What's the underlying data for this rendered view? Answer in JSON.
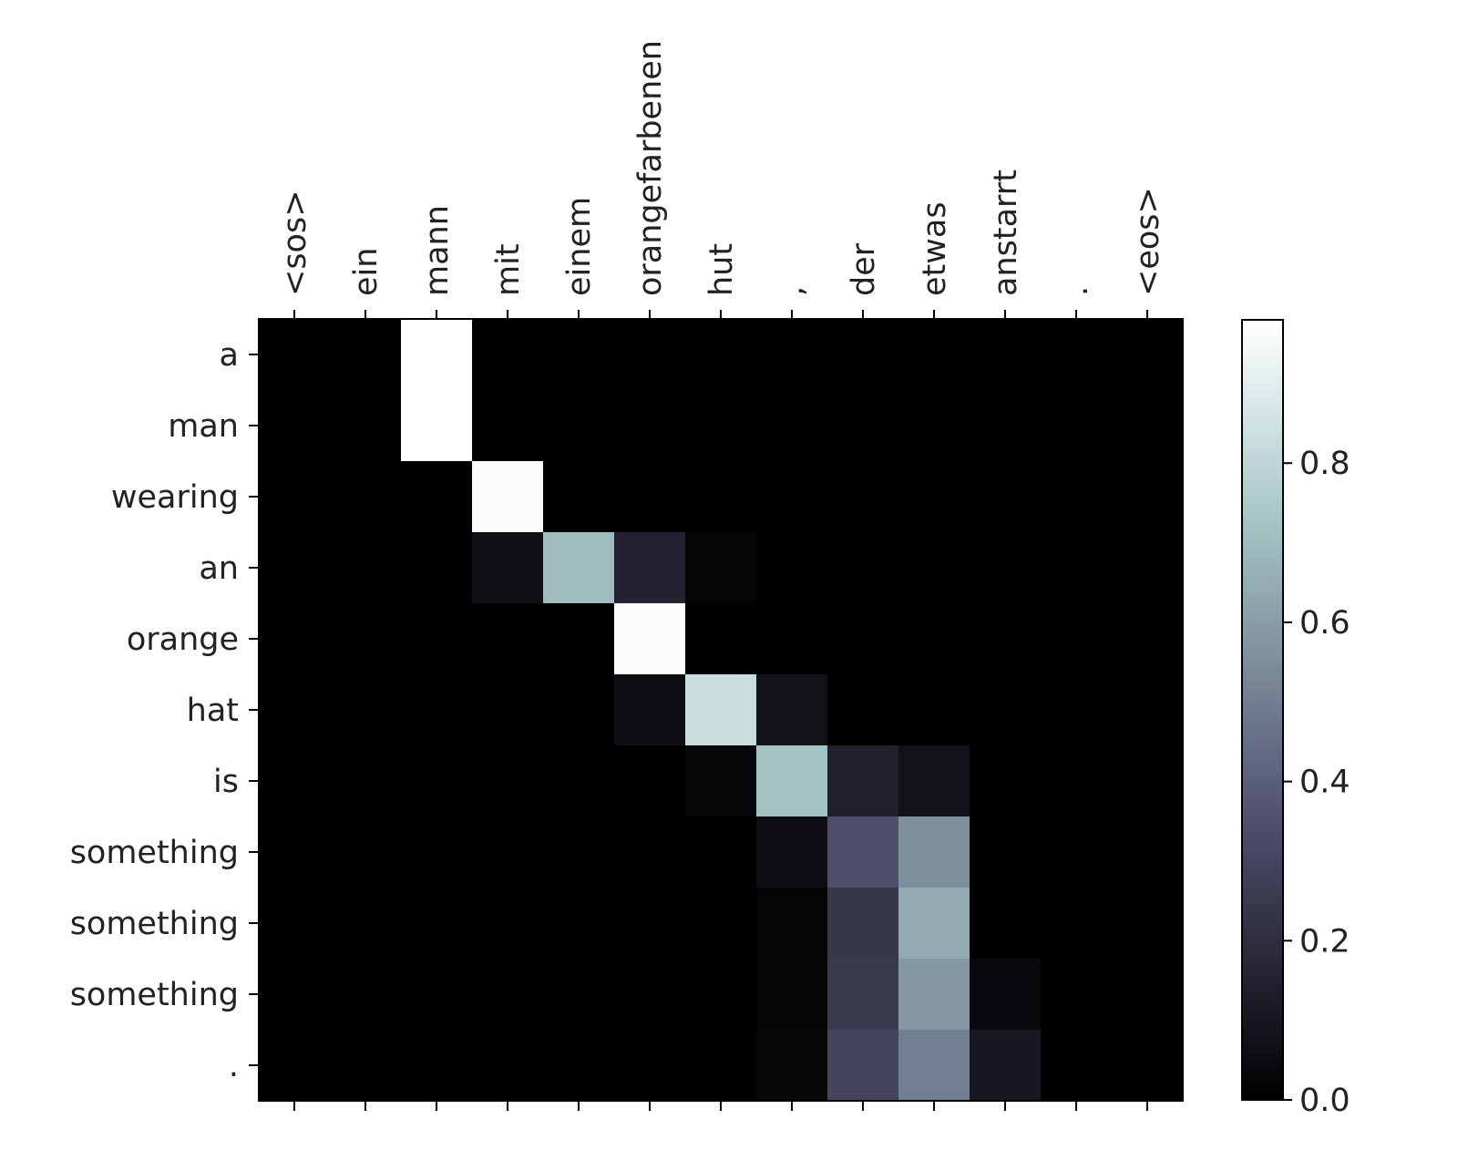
{
  "chart_data": {
    "type": "heatmap",
    "title": "",
    "xlabel": "",
    "ylabel": "",
    "x_tokens": [
      "<sos>",
      "ein",
      "mann",
      "mit",
      "einem",
      "orangefarbenen",
      "hut",
      ",",
      "der",
      "etwas",
      "anstarrt",
      ".",
      "<eos>"
    ],
    "y_tokens": [
      "a",
      "man",
      "wearing",
      "an",
      "orange",
      "hat",
      "is",
      "something",
      "something",
      "something",
      "."
    ],
    "colormap": "bone",
    "colorbar": {
      "ticks": [
        0.0,
        0.2,
        0.4,
        0.6,
        0.8
      ],
      "tick_labels": [
        "0.0",
        "0.2",
        "0.4",
        "0.6",
        "0.8"
      ],
      "range": [
        0,
        0.98
      ]
    },
    "values": [
      [
        0,
        0,
        0.98,
        0,
        0,
        0,
        0,
        0,
        0,
        0,
        0,
        0,
        0
      ],
      [
        0,
        0,
        0.98,
        0,
        0,
        0,
        0,
        0,
        0,
        0,
        0,
        0,
        0
      ],
      [
        0,
        0,
        0,
        0.97,
        0,
        0,
        0,
        0,
        0,
        0,
        0,
        0,
        0
      ],
      [
        0,
        0,
        0,
        0.07,
        0.7,
        0.15,
        0.02,
        0,
        0,
        0,
        0,
        0,
        0
      ],
      [
        0,
        0,
        0,
        0,
        0,
        0.97,
        0,
        0,
        0,
        0,
        0,
        0,
        0
      ],
      [
        0,
        0,
        0,
        0,
        0,
        0.06,
        0.83,
        0.08,
        0,
        0,
        0,
        0,
        0
      ],
      [
        0,
        0,
        0,
        0,
        0,
        0,
        0.03,
        0.72,
        0.14,
        0.08,
        0,
        0,
        0
      ],
      [
        0,
        0,
        0,
        0,
        0,
        0,
        0,
        0.06,
        0.34,
        0.55,
        0,
        0,
        0
      ],
      [
        0,
        0,
        0,
        0,
        0,
        0,
        0,
        0.02,
        0.24,
        0.64,
        0,
        0,
        0
      ],
      [
        0,
        0,
        0,
        0,
        0,
        0,
        0,
        0.02,
        0.25,
        0.58,
        0.04,
        0,
        0
      ],
      [
        0,
        0,
        0,
        0,
        0,
        0,
        0,
        0.03,
        0.3,
        0.5,
        0.1,
        0,
        0
      ]
    ]
  }
}
